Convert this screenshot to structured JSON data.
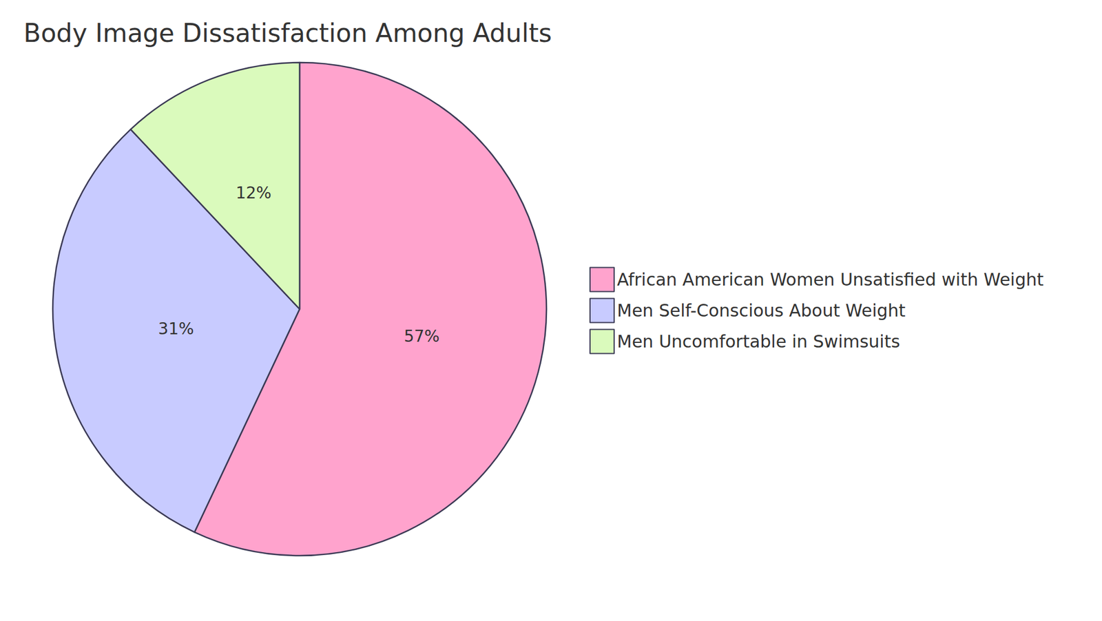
{
  "chart_data": {
    "type": "pie",
    "title": "Body Image Dissatisfaction Among Adults",
    "categories": [
      "African American Women Unsatisfied with Weight",
      "Men Self-Conscious About Weight",
      "Men Uncomfortable in Swimsuits"
    ],
    "values": [
      57,
      31,
      12
    ],
    "value_labels": [
      "57%",
      "31%",
      "12%"
    ],
    "colors": [
      "#ffa3cd",
      "#c8cbff",
      "#dafabc"
    ],
    "data_labels": true,
    "legend": "right"
  }
}
